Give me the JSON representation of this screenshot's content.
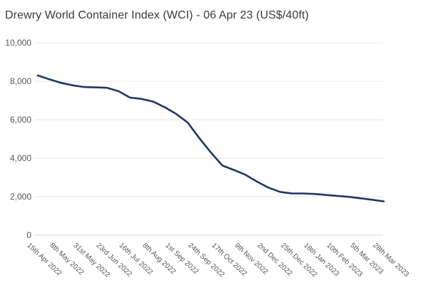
{
  "title": "Drewry World Container Index (WCI) - 06 Apr 23 (US$/40ft)",
  "colors": {
    "line": "#1f3864",
    "grid": "#e4e4e4",
    "axis_line": "#d8d8d8",
    "tick_label": "#555555",
    "title": "#3a3a3a",
    "background": "#ffffff"
  },
  "chart_data": {
    "type": "line",
    "title": "Drewry World Container Index (WCI) - 06 Apr 23 (US$/40ft)",
    "categories": [
      "15th Apr 2022",
      "8th May 2022",
      "31st May 2022",
      "23rd Jun 2022",
      "16th Jul 2022",
      "8th Aug 2022",
      "1st Sep 2022",
      "24th Sep 2022",
      "17th Oct 2022",
      "9th Nov 2022",
      "2nd Dec 2022",
      "25th Dec 2022",
      "18th Jan 2023",
      "10th Feb 2023",
      "5th Mar 2023",
      "28th Mar 2023"
    ],
    "series": [
      {
        "name": "World Container Index (US$/40ft)",
        "samples_per_category_interval": 2,
        "values": [
          8300,
          8100,
          7920,
          7790,
          7700,
          7680,
          7660,
          7480,
          7150,
          7080,
          6940,
          6650,
          6300,
          5850,
          5050,
          4300,
          3620,
          3390,
          3140,
          2780,
          2470,
          2250,
          2170,
          2165,
          2140,
          2090,
          2040,
          1990,
          1915,
          1840,
          1755
        ]
      }
    ],
    "values_at_categories": [
      8300,
      7920,
      7700,
      7660,
      7150,
      6940,
      6300,
      5050,
      3620,
      3140,
      2470,
      2170,
      2140,
      2040,
      1915,
      1755
    ],
    "ylim": [
      0,
      10000
    ],
    "yticks": [
      0,
      2000,
      4000,
      6000,
      8000,
      10000
    ],
    "ytick_labels": [
      "0",
      "2,000",
      "4,000",
      "6,000",
      "8,000",
      "10,000"
    ],
    "xlabel": "",
    "ylabel": "",
    "grid": "horizontal",
    "legend": "none",
    "x_label_rotation_deg": 43
  }
}
